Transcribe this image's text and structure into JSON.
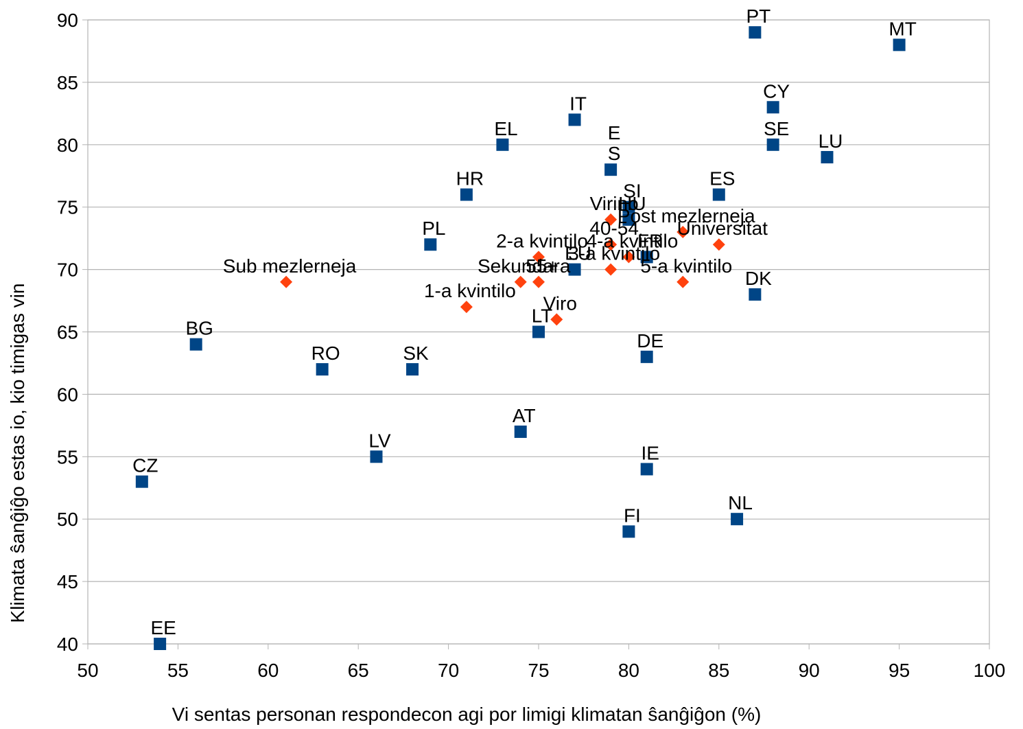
{
  "chart_data": {
    "type": "scatter",
    "xlabel": "Vi sentas personan respondecon agi por limigi klimatan ŝanĝiĝon (%)",
    "ylabel": "Klimata ŝanĝiĝo estas io, kio timigas vin",
    "xlim": [
      50,
      100
    ],
    "xticks": [
      50,
      55,
      60,
      65,
      70,
      75,
      80,
      85,
      90,
      95,
      100
    ],
    "ylim": [
      40,
      90
    ],
    "yticks": [
      40,
      45,
      50,
      55,
      60,
      65,
      70,
      75,
      80,
      85,
      90
    ],
    "grid": true,
    "series": [
      {
        "marker": "square",
        "color": "#004586",
        "labels": [
          "PT",
          "MT",
          "CY",
          "SE",
          "LU",
          "IT",
          "EL",
          "E\nS",
          "HR",
          "ES",
          "SI",
          "HU",
          "PL",
          "EU",
          "FR",
          "LT",
          "DK",
          "DE",
          "BG",
          "RO",
          "SK",
          "AT",
          "LV",
          "CZ",
          "IE",
          "FI",
          "NL",
          "EE"
        ],
        "x": [
          87,
          95,
          88,
          88,
          91,
          77,
          73,
          79,
          71,
          85,
          80,
          80,
          69,
          77,
          81,
          75,
          87,
          81,
          56,
          63,
          68,
          74,
          66,
          53,
          81,
          80,
          86,
          54
        ],
        "values": [
          89,
          88,
          83,
          80,
          79,
          82,
          80,
          78,
          76,
          76,
          75,
          74,
          72,
          70,
          71,
          65,
          68,
          63,
          64,
          62,
          62,
          57,
          55,
          53,
          54,
          49,
          50,
          40
        ]
      },
      {
        "marker": "diamond",
        "color": "#ff420e",
        "labels": [
          "Sub mezlerneja",
          "1-a kvintilo",
          "2-a kvintilo",
          "Sekundara",
          "55+",
          "Viro",
          "Virino",
          "40-54",
          "4-a kvintilo",
          "3-a kvintilo",
          "Post mezlerneja",
          "Universitat",
          "5-a kvintilo"
        ],
        "x": [
          61,
          71,
          75,
          74,
          75,
          76,
          79,
          79,
          80,
          79,
          83,
          85,
          83
        ],
        "values": [
          69,
          67,
          71,
          69,
          69,
          66,
          74,
          72,
          71,
          70,
          73,
          72,
          69
        ]
      }
    ]
  }
}
